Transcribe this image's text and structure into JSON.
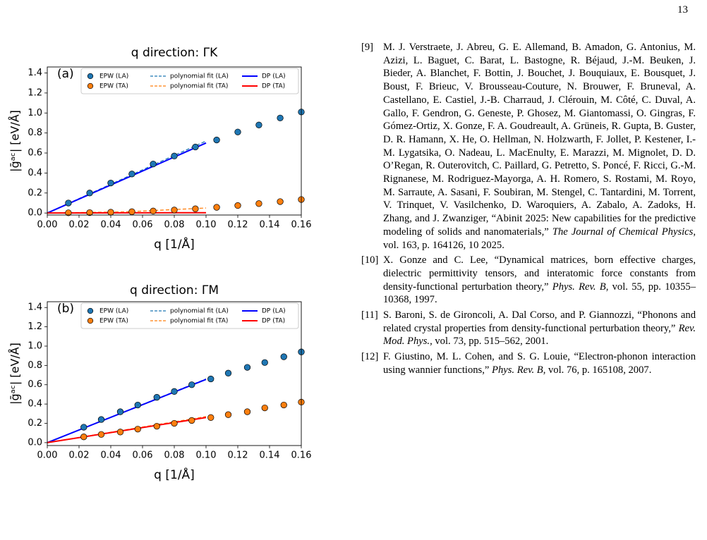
{
  "page_number": "13",
  "chart_data": [
    {
      "type": "line",
      "title": "q direction: ΓK",
      "panel_label": "(a)",
      "x_label": "q [1/Å]",
      "y_label": "|ḡᵃᶜ| [eV/Å]",
      "xlim": [
        0,
        0.16
      ],
      "ylim": [
        -0.02,
        1.46
      ],
      "xticks": [
        {
          "value": 0,
          "label": "0.00"
        },
        0.02,
        0.04,
        0.06,
        0.08,
        {
          "value": 0.1,
          "label": "0.10"
        },
        0.12,
        0.14,
        0.16
      ],
      "yticks": [
        {
          "value": 0,
          "label": "0.0"
        },
        0.2,
        0.4,
        0.6,
        0.8,
        {
          "value": 1,
          "label": "1.0"
        },
        1.2,
        1.4
      ],
      "legend": "upper left",
      "legend_columns": 3,
      "series": [
        {
          "name": "EPW (LA)",
          "kind": "scatter",
          "color": "#1f77b4",
          "x": [
            0.0133,
            0.0267,
            0.04,
            0.0533,
            0.0667,
            0.08,
            0.0933,
            0.1067,
            0.12,
            0.1333,
            0.1467,
            0.16
          ],
          "values": [
            0.1,
            0.2,
            0.3,
            0.39,
            0.49,
            0.57,
            0.66,
            0.73,
            0.81,
            0.88,
            0.95,
            1.01
          ]
        },
        {
          "name": "EPW (TA)",
          "kind": "scatter",
          "color": "#ff7f0e",
          "x": [
            0.0133,
            0.0267,
            0.04,
            0.0533,
            0.0667,
            0.08,
            0.0933,
            0.1067,
            0.12,
            0.1333,
            0.1467,
            0.16
          ],
          "values": [
            0.002,
            0.004,
            0.008,
            0.013,
            0.02,
            0.03,
            0.042,
            0.057,
            0.075,
            0.094,
            0.114,
            0.135
          ]
        },
        {
          "name": "polynomial fit (LA)",
          "kind": "line",
          "line_style": "dashed",
          "color": "#1f77b4",
          "x": [
            0,
            0.1
          ],
          "values": [
            0,
            0.72
          ]
        },
        {
          "name": "polynomial fit (TA)",
          "kind": "line",
          "line_style": "dashed",
          "color": "#ff7f0e",
          "x": [
            0,
            0.05,
            0.1
          ],
          "values": [
            0,
            0.012,
            0.05
          ]
        },
        {
          "name": "DP (LA)",
          "kind": "line",
          "line_style": "solid",
          "color": "#0000ff",
          "x": [
            0,
            0.1
          ],
          "values": [
            0,
            0.7
          ]
        },
        {
          "name": "DP (TA)",
          "kind": "line",
          "line_style": "solid",
          "color": "#ff0000",
          "x": [
            0,
            0.1
          ],
          "values": [
            0,
            0.003
          ]
        }
      ]
    },
    {
      "type": "line",
      "title": "q direction: ΓM",
      "panel_label": "(b)",
      "x_label": "q [1/Å]",
      "y_label": "|ḡᵃᶜ| [eV/Å]",
      "xlim": [
        0,
        0.16
      ],
      "ylim": [
        -0.03,
        1.46
      ],
      "xticks": [
        {
          "value": 0,
          "label": "0.00"
        },
        0.02,
        0.04,
        0.06,
        0.08,
        {
          "value": 0.1,
          "label": "0.10"
        },
        0.12,
        0.14,
        0.16
      ],
      "yticks": [
        {
          "value": 0,
          "label": "0.0"
        },
        0.2,
        0.4,
        0.6,
        0.8,
        {
          "value": 1,
          "label": "1.0"
        },
        1.2,
        1.4
      ],
      "legend": "upper left",
      "legend_columns": 3,
      "series": [
        {
          "name": "EPW (LA)",
          "kind": "scatter",
          "color": "#1f77b4",
          "x": [
            0.023,
            0.034,
            0.046,
            0.057,
            0.069,
            0.08,
            0.091,
            0.103,
            0.114,
            0.126,
            0.137,
            0.149,
            0.16
          ],
          "values": [
            0.16,
            0.24,
            0.32,
            0.39,
            0.47,
            0.53,
            0.6,
            0.66,
            0.72,
            0.78,
            0.83,
            0.89,
            0.94
          ]
        },
        {
          "name": "EPW (TA)",
          "kind": "scatter",
          "color": "#ff7f0e",
          "x": [
            0.023,
            0.034,
            0.046,
            0.057,
            0.069,
            0.08,
            0.091,
            0.103,
            0.114,
            0.126,
            0.137,
            0.149,
            0.16
          ],
          "values": [
            0.06,
            0.085,
            0.11,
            0.14,
            0.17,
            0.2,
            0.23,
            0.26,
            0.29,
            0.32,
            0.36,
            0.39,
            0.42
          ]
        },
        {
          "name": "polynomial fit (LA)",
          "kind": "line",
          "line_style": "dashed",
          "color": "#1f77b4",
          "x": [
            0,
            0.1
          ],
          "values": [
            0,
            0.66
          ]
        },
        {
          "name": "polynomial fit (TA)",
          "kind": "line",
          "line_style": "dashed",
          "color": "#ff7f0e",
          "x": [
            0,
            0.1
          ],
          "values": [
            0,
            0.27
          ]
        },
        {
          "name": "DP (LA)",
          "kind": "line",
          "line_style": "solid",
          "color": "#0000ff",
          "x": [
            0,
            0.1
          ],
          "values": [
            0,
            0.655
          ]
        },
        {
          "name": "DP (TA)",
          "kind": "line",
          "line_style": "solid",
          "color": "#ff0000",
          "x": [
            0,
            0.1
          ],
          "values": [
            0,
            0.26
          ]
        }
      ]
    }
  ],
  "references": [
    {
      "label": "[9]",
      "parts": [
        {
          "text": "M. J. Verstraete, J. Abreu, G. E. Allemand, B. Amadon, G. Antonius, M. Azizi, L. Baguet, C. Barat, L. Bastogne, R. Béjaud, J.-M. Beuken, J. Bieder, A. Blanchet, F. Bottin, J. Bouchet, J. Bouquiaux, E. Bousquet, J. Boust, F. Brieuc, V. Brousseau-Couture, N. Brouwer, F. Bruneval, A. Castellano, E. Castiel, J.-B. Charraud, J. Clérouin, M. Côté, C. Duval, A. Gallo, F. Gendron, G. Geneste, P. Ghosez, M. Giantomassi, O. Gingras, F. Gómez-Ortiz, X. Gonze, F. A. Goudreault, A. Grüneis, R. Gupta, B. Guster, D. R. Hamann, X. He, O. Hellman, N. Holzwarth, F. Jollet, P. Kestener, I.-M. Lygatsika, O. Nadeau, L. MacEnulty, E. Marazzi, M. Mignolet, D. D. O’Regan, R. Outerovitch, C. Paillard, G. Petretto, S. Poncé, F. Ricci, G.-M. Rignanese, M. Rodriguez-Mayorga, A. H. Romero, S. Rostami, M. Royo, M. Sarraute, A. Sasani, F. Soubiran, M. Stengel, C. Tantardini, M. Torrent, V. Trinquet, V. Vasilchenko, D. Waroquiers, A. Zabalo, A. Zadoks, H. Zhang, and J. Zwanziger, “Abinit 2025: New capabilities for the predictive modeling of solids and nanomaterials,”"
        },
        {
          "text": "The Journal of Chemical Physics",
          "italic": true
        },
        {
          "text": ", vol. 163, p. 164126, 10 2025."
        }
      ]
    },
    {
      "label": "[10]",
      "parts": [
        {
          "text": "X. Gonze and C. Lee, “Dynamical matrices, born effective charges, dielectric permittivity tensors, and interatomic force constants from density-functional perturbation theory,”"
        },
        {
          "text": "Phys. Rev. B",
          "italic": true
        },
        {
          "text": ", vol. 55, pp. 10355–10368, 1997."
        }
      ]
    },
    {
      "label": "[11]",
      "parts": [
        {
          "text": "S. Baroni, S. de Gironcoli, A. Dal Corso, and P. Giannozzi, “Phonons and related crystal properties from density-functional perturbation theory,”"
        },
        {
          "text": "Rev. Mod. Phys.",
          "italic": true
        },
        {
          "text": ", vol. 73, pp. 515–562, 2001."
        }
      ]
    },
    {
      "label": "[12]",
      "parts": [
        {
          "text": "F. Giustino, M. L. Cohen, and S. G. Louie, “Electron-phonon interaction using wannier functions,”"
        },
        {
          "text": "Phys. Rev. B",
          "italic": true
        },
        {
          "text": ", vol. 76, p. 165108, 2007."
        }
      ]
    }
  ]
}
